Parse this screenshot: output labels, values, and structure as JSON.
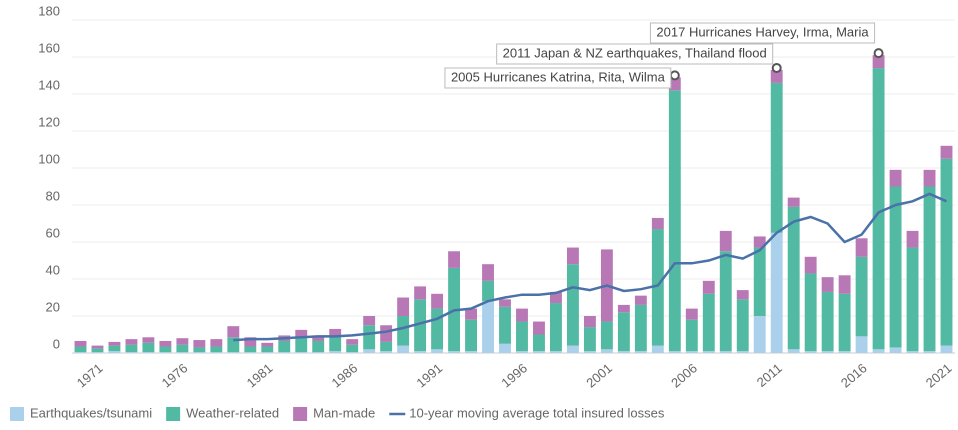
{
  "chart_data": {
    "type": "bar",
    "stacked": true,
    "x": [
      1970,
      1971,
      1972,
      1973,
      1974,
      1975,
      1976,
      1977,
      1978,
      1979,
      1980,
      1981,
      1982,
      1983,
      1984,
      1985,
      1986,
      1987,
      1988,
      1989,
      1990,
      1991,
      1992,
      1993,
      1994,
      1995,
      1996,
      1997,
      1998,
      1999,
      2000,
      2001,
      2002,
      2003,
      2004,
      2005,
      2006,
      2007,
      2008,
      2009,
      2010,
      2011,
      2012,
      2013,
      2014,
      2015,
      2016,
      2017,
      2018,
      2019,
      2020,
      2021
    ],
    "xlim": [
      1969.5,
      2021.5
    ],
    "xticks": [
      1971,
      1976,
      1981,
      1986,
      1991,
      1996,
      2001,
      2006,
      2011,
      2016,
      2021
    ],
    "ylim": [
      0,
      180
    ],
    "yticks": [
      0,
      20,
      40,
      60,
      80,
      100,
      120,
      140,
      160,
      180
    ],
    "grid": true,
    "series": [
      {
        "name": "Earthquakes/tsunami",
        "color": "#abd0ec",
        "values": [
          0.5,
          0.5,
          1,
          0.5,
          0.5,
          0.5,
          0.5,
          0.5,
          0.5,
          0.5,
          0.5,
          0.5,
          0.5,
          0.5,
          0.5,
          1,
          0.5,
          2,
          1,
          4,
          1,
          2,
          1,
          1,
          28,
          5,
          1,
          1,
          1,
          4,
          1,
          2,
          1,
          1,
          4,
          1,
          1,
          1,
          1,
          1,
          20,
          65,
          2,
          1,
          1,
          1,
          9,
          2,
          3,
          1,
          1,
          4
        ]
      },
      {
        "name": "Weather-related",
        "color": "#52b9a2",
        "values": [
          3,
          2,
          3,
          4,
          5,
          3,
          4,
          2.5,
          3,
          8,
          3,
          3,
          6,
          8,
          6,
          8,
          4,
          13,
          5,
          16,
          28,
          22,
          45,
          17,
          11,
          20,
          16,
          9,
          26,
          44,
          13,
          15,
          21,
          25,
          63,
          141,
          17,
          31,
          54,
          28,
          37,
          81,
          77,
          42,
          32,
          31,
          43,
          152,
          87,
          56,
          89,
          101
        ]
      },
      {
        "name": "Man-made",
        "color": "#b878b6",
        "values": [
          3,
          1.5,
          2,
          3,
          3,
          3,
          3.5,
          4,
          4,
          6,
          5,
          2,
          3,
          4,
          3,
          4,
          3,
          5,
          9,
          10,
          7,
          8,
          9,
          6,
          9,
          4,
          7,
          7,
          6,
          9,
          6,
          39,
          4,
          5,
          6,
          7,
          6,
          7,
          11,
          5,
          6,
          7,
          5,
          9,
          8,
          10,
          10,
          7,
          9,
          9,
          9,
          7
        ]
      },
      {
        "name": "10-year moving average total insured losses",
        "color": "#4a72a8",
        "type": "line",
        "values": [
          null,
          null,
          null,
          null,
          null,
          null,
          null,
          null,
          null,
          7,
          7.5,
          7.5,
          8,
          8.5,
          9,
          9,
          9.5,
          10.5,
          11.5,
          13.5,
          16,
          18.5,
          23,
          24,
          28,
          30,
          31.5,
          31.5,
          32.5,
          35.5,
          34,
          36.5,
          33.5,
          34.5,
          36.5,
          48.5,
          48.5,
          50,
          53,
          51,
          55.5,
          65,
          71,
          73.5,
          70,
          60,
          64,
          76,
          80,
          82,
          86,
          82
        ]
      }
    ],
    "annotations": [
      {
        "text": "2005 Hurricanes Katrina, Rita, Wilma",
        "x": 2005
      },
      {
        "text": "2011 Japan & NZ earthquakes, Thailand flood",
        "x": 2011
      },
      {
        "text": "2017 Hurricanes Harvey, Irma, Maria",
        "x": 2017
      }
    ]
  }
}
